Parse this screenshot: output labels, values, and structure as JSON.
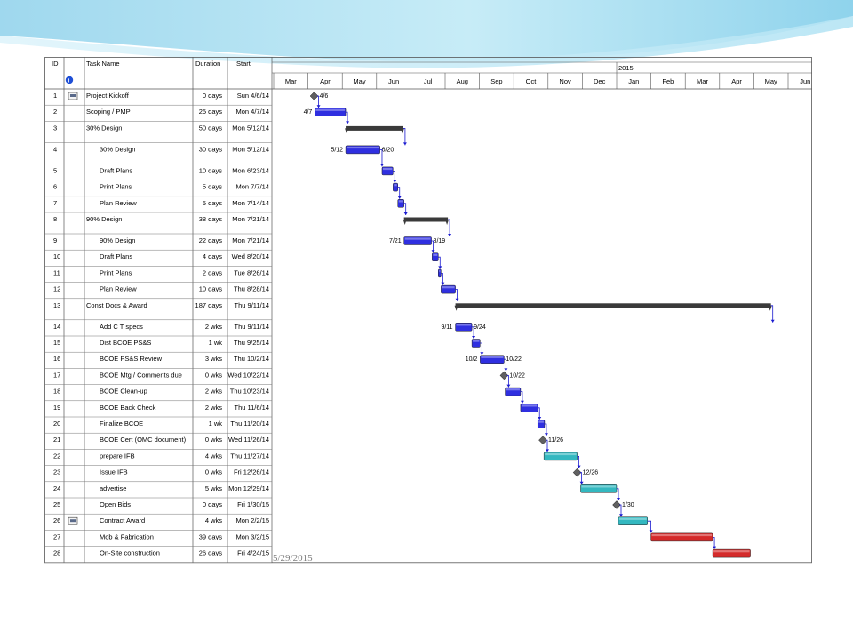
{
  "slide": {
    "date": "5/29/2015"
  },
  "colors": {
    "task_blue": "#2f2fe0",
    "task_teal": "#33b8c0",
    "task_red": "#d42a2a",
    "summary": "#3a3a3a",
    "milestone": "#606060",
    "link": "#1a1ad0",
    "grid": "#9a9a9a"
  },
  "columns": {
    "id": "ID",
    "name": "Task Name",
    "duration": "Duration",
    "start": "Start"
  },
  "timescale": {
    "year_label": "2015",
    "months": [
      "Mar",
      "Apr",
      "May",
      "Jun",
      "Jul",
      "Aug",
      "Sep",
      "Oct",
      "Nov",
      "Dec",
      "Jan",
      "Feb",
      "Mar",
      "Apr",
      "May",
      "Jun"
    ]
  },
  "tasks": [
    {
      "id": "1",
      "name": "Project Kickoff",
      "duration": "0 days",
      "start": "Sun 4/6/14",
      "info_icon": true,
      "type": "milestone",
      "s": 1.18,
      "label_right": "4/6",
      "indent": 0
    },
    {
      "id": "2",
      "name": "Scoping / PMP",
      "duration": "25 days",
      "start": "Mon 4/7/14",
      "type": "task",
      "color": "blue",
      "s": 1.2,
      "e": 2.1,
      "label_left": "4/7",
      "indent": 0
    },
    {
      "id": "3",
      "name": "30% Design",
      "duration": "50 days",
      "start": "Mon 5/12/14",
      "type": "summary",
      "s": 2.1,
      "e": 3.78,
      "indent": 0,
      "tall": true
    },
    {
      "id": "4",
      "name": "30% Design",
      "duration": "30 days",
      "start": "Mon 5/12/14",
      "type": "task",
      "color": "blue",
      "s": 2.1,
      "e": 3.1,
      "label_left": "5/12",
      "label_right": "6/20",
      "indent": 1,
      "tall": true
    },
    {
      "id": "5",
      "name": "Draft Plans",
      "duration": "10 days",
      "start": "Mon 6/23/14",
      "type": "task",
      "color": "blue",
      "s": 3.16,
      "e": 3.48,
      "indent": 1
    },
    {
      "id": "6",
      "name": "Print Plans",
      "duration": "5 days",
      "start": "Mon 7/7/14",
      "type": "task",
      "color": "blue",
      "s": 3.48,
      "e": 3.62,
      "indent": 1
    },
    {
      "id": "7",
      "name": "Plan Review",
      "duration": "5 days",
      "start": "Mon 7/14/14",
      "type": "task",
      "color": "blue",
      "s": 3.62,
      "e": 3.8,
      "indent": 1
    },
    {
      "id": "8",
      "name": "90% Design",
      "duration": "38 days",
      "start": "Mon 7/21/14",
      "type": "summary",
      "s": 3.8,
      "e": 5.08,
      "indent": 0,
      "tall": true
    },
    {
      "id": "9",
      "name": "90% Design",
      "duration": "22 days",
      "start": "Mon 7/21/14",
      "type": "task",
      "color": "blue",
      "s": 3.8,
      "e": 4.6,
      "label_left": "7/21",
      "label_right": "8/19",
      "indent": 1
    },
    {
      "id": "10",
      "name": "Draft Plans",
      "duration": "4 days",
      "start": "Wed 8/20/14",
      "type": "task",
      "color": "blue",
      "s": 4.62,
      "e": 4.8,
      "indent": 1
    },
    {
      "id": "11",
      "name": "Print Plans",
      "duration": "2 days",
      "start": "Tue 8/26/14",
      "type": "task",
      "color": "blue",
      "s": 4.8,
      "e": 4.88,
      "indent": 1
    },
    {
      "id": "12",
      "name": "Plan Review",
      "duration": "10 days",
      "start": "Thu 8/28/14",
      "type": "task",
      "color": "blue",
      "s": 4.88,
      "e": 5.3,
      "indent": 1
    },
    {
      "id": "13",
      "name": "Const Docs & Award",
      "duration": "187 days",
      "start": "Thu 9/11/14",
      "type": "summary",
      "s": 5.3,
      "e": 14.5,
      "indent": 0,
      "tall": true
    },
    {
      "id": "14",
      "name": "Add C T specs",
      "duration": "2 wks",
      "start": "Thu 9/11/14",
      "type": "task",
      "color": "blue",
      "s": 5.3,
      "e": 5.78,
      "label_left": "9/11",
      "label_right": "9/24",
      "indent": 1
    },
    {
      "id": "15",
      "name": "Dist BCOE PS&S",
      "duration": "1 wk",
      "start": "Thu 9/25/14",
      "type": "task",
      "color": "blue",
      "s": 5.78,
      "e": 6.02,
      "indent": 1
    },
    {
      "id": "16",
      "name": "BCOE PS&S Review",
      "duration": "3 wks",
      "start": "Thu 10/2/14",
      "type": "task",
      "color": "blue",
      "s": 6.02,
      "e": 6.72,
      "label_left": "10/2",
      "label_right": "10/22",
      "indent": 1
    },
    {
      "id": "17",
      "name": "BCOE Mtg / Comments due",
      "duration": "0 wks",
      "start": "Wed 10/22/14",
      "type": "milestone",
      "s": 6.72,
      "label_right": "10/22",
      "indent": 1
    },
    {
      "id": "18",
      "name": "BCOE Clean-up",
      "duration": "2 wks",
      "start": "Thu 10/23/14",
      "type": "task",
      "color": "blue",
      "s": 6.75,
      "e": 7.2,
      "indent": 1
    },
    {
      "id": "19",
      "name": "BCOE Back Check",
      "duration": "2 wks",
      "start": "Thu 11/6/14",
      "type": "task",
      "color": "blue",
      "s": 7.2,
      "e": 7.7,
      "indent": 1
    },
    {
      "id": "20",
      "name": "Finalize BCOE",
      "duration": "1 wk",
      "start": "Thu 11/20/14",
      "type": "task",
      "color": "blue",
      "s": 7.7,
      "e": 7.9,
      "indent": 1
    },
    {
      "id": "21",
      "name": "BCOE Cert (OMC document)",
      "duration": "0 wks",
      "start": "Wed 11/26/14",
      "type": "milestone",
      "s": 7.85,
      "label_right": "11/26",
      "indent": 1
    },
    {
      "id": "22",
      "name": "prepare IFB",
      "duration": "4 wks",
      "start": "Thu 11/27/14",
      "type": "task",
      "color": "teal",
      "s": 7.88,
      "e": 8.85,
      "indent": 1
    },
    {
      "id": "23",
      "name": "Issue IFB",
      "duration": "0 wks",
      "start": "Fri 12/26/14",
      "type": "milestone",
      "s": 8.85,
      "label_right": "12/26",
      "indent": 1
    },
    {
      "id": "24",
      "name": "advertise",
      "duration": "5 wks",
      "start": "Mon 12/29/14",
      "type": "task",
      "color": "teal",
      "s": 8.95,
      "e": 10.0,
      "indent": 1
    },
    {
      "id": "25",
      "name": "Open Bids",
      "duration": "0 days",
      "start": "Fri 1/30/15",
      "type": "milestone",
      "s": 10.0,
      "label_right": "1/30",
      "indent": 1
    },
    {
      "id": "26",
      "name": "Contract Award",
      "duration": "4 wks",
      "start": "Mon 2/2/15",
      "info_icon": true,
      "type": "task",
      "color": "teal",
      "s": 10.05,
      "e": 10.9,
      "indent": 1
    },
    {
      "id": "27",
      "name": "Mob & Fabrication",
      "duration": "39 days",
      "start": "Mon 3/2/15",
      "type": "task",
      "color": "red",
      "s": 11.0,
      "e": 12.8,
      "indent": 1
    },
    {
      "id": "28",
      "name": "On-Site construction",
      "duration": "26 days",
      "start": "Fri 4/24/15",
      "type": "task",
      "color": "red",
      "s": 12.8,
      "e": 13.9,
      "indent": 1
    }
  ]
}
